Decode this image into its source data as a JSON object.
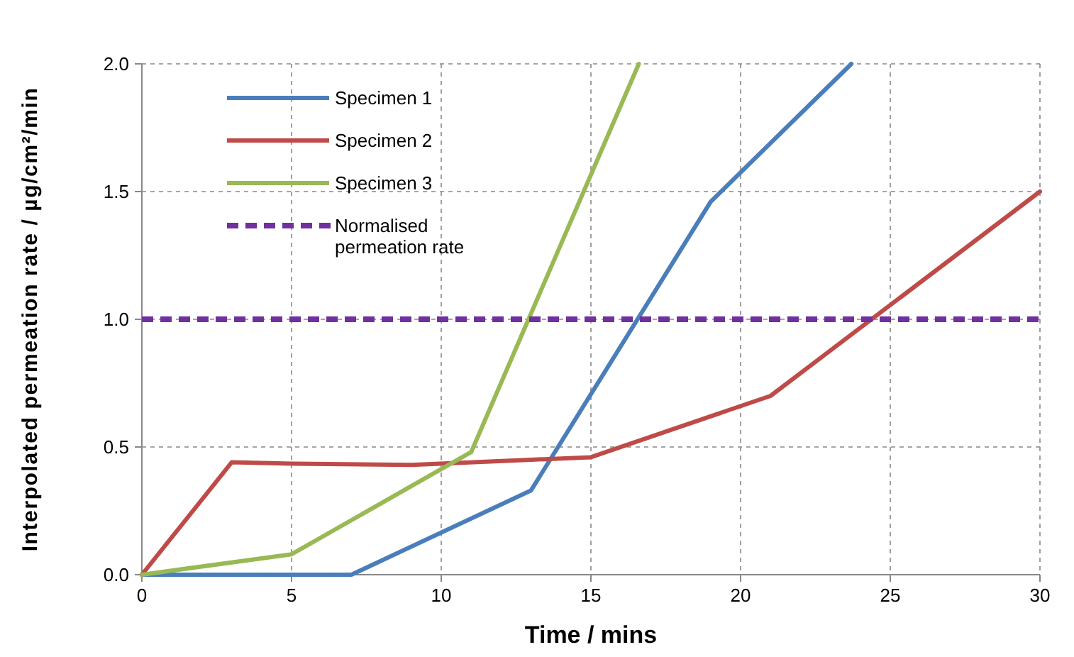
{
  "chart_data": {
    "type": "line",
    "xlabel": "Time / mins",
    "ylabel": "Interpolated permeation rate / µg/cm²/min",
    "xlim": [
      0,
      30
    ],
    "xticks": [
      0,
      5,
      10,
      15,
      20,
      25,
      30
    ],
    "ylim": [
      0,
      2
    ],
    "yticks": [
      {
        "value": 0,
        "label": "0.0"
      },
      {
        "value": 0.5,
        "label": "0.5"
      },
      {
        "value": 1,
        "label": "1.0"
      },
      {
        "value": 1.5,
        "label": "1.5"
      },
      {
        "value": 2,
        "label": "2.0"
      }
    ],
    "grid": true,
    "legend": "top left",
    "line_style": "solid",
    "marker": "none",
    "series": [
      {
        "name": "Specimen 1",
        "color": "#4a7ebb",
        "x": [
          0,
          5,
          7,
          13,
          19,
          23.7
        ],
        "values": [
          0,
          0,
          0,
          0.33,
          1.46,
          2.0
        ]
      },
      {
        "name": "Specimen 2",
        "color": "#be4b48",
        "x": [
          0,
          3,
          5,
          9,
          13,
          15,
          21,
          30
        ],
        "values": [
          0,
          0.44,
          0.435,
          0.43,
          0.45,
          0.46,
          0.7,
          1.5
        ]
      },
      {
        "name": "Specimen 3",
        "color": "#98b954",
        "x": [
          0,
          5,
          11,
          16.6
        ],
        "values": [
          0,
          0.08,
          0.48,
          2.0
        ]
      }
    ],
    "ref_lines": [
      {
        "axis": "y",
        "value": 1,
        "label": "Normalised permeation rate",
        "color": "#7030a0",
        "line_style": "dashed"
      }
    ]
  }
}
